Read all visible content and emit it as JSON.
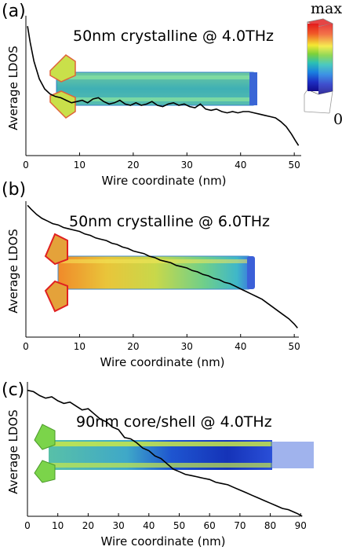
{
  "chart_data": [
    {
      "type": "line",
      "panel": "(a)",
      "title": "50nm crystalline @ 4.0THz",
      "xlabel": "Wire coordinate (nm)",
      "ylabel": "Average LDOS",
      "xticks": [
        0,
        10,
        20,
        30,
        40,
        50
      ],
      "xlim": [
        0,
        51
      ],
      "ylim": [
        0,
        1
      ],
      "grid": false,
      "series": [
        {
          "x": [
            0.3,
            0.8,
            1.5,
            2.5,
            3.5,
            4.5,
            5.5,
            6.5,
            7.5,
            8.5,
            9.5,
            10.5,
            11.5,
            12.5,
            13.5,
            14.5,
            15.5,
            16.5,
            17.5,
            18.5,
            19.5,
            20.5,
            21.5,
            22.5,
            23.5,
            24.5,
            25.5,
            26.5,
            27.5,
            28.5,
            29.5,
            30.5,
            31.5,
            32.5,
            33.5,
            34.5,
            35.5,
            36.5,
            37.5,
            38.5,
            39.5,
            40.5,
            41.5,
            42.5,
            43.5,
            44.5,
            45.5,
            46.5,
            47.5,
            48.5,
            49.5,
            50.2,
            50.8
          ],
          "y": [
            0.98,
            0.85,
            0.7,
            0.56,
            0.48,
            0.44,
            0.42,
            0.41,
            0.39,
            0.37,
            0.38,
            0.39,
            0.37,
            0.4,
            0.41,
            0.38,
            0.36,
            0.37,
            0.39,
            0.36,
            0.35,
            0.37,
            0.35,
            0.36,
            0.38,
            0.35,
            0.34,
            0.36,
            0.37,
            0.35,
            0.36,
            0.34,
            0.33,
            0.36,
            0.32,
            0.31,
            0.32,
            0.3,
            0.29,
            0.3,
            0.29,
            0.3,
            0.3,
            0.29,
            0.28,
            0.27,
            0.26,
            0.25,
            0.22,
            0.18,
            0.12,
            0.07,
            0.03
          ]
        }
      ]
    },
    {
      "type": "line",
      "panel": "(b)",
      "title": "50nm crystalline @ 6.0THz",
      "xlabel": "Wire coordinate (nm)",
      "ylabel": "Average LDOS",
      "xticks": [
        0,
        10,
        20,
        30,
        40,
        50
      ],
      "xlim": [
        0,
        51
      ],
      "ylim": [
        0,
        1
      ],
      "grid": false,
      "series": [
        {
          "x": [
            0.3,
            1,
            2,
            3,
            4,
            5,
            6,
            7,
            8,
            9,
            10,
            11,
            12,
            13,
            14,
            15,
            16,
            17,
            18,
            19,
            20,
            21,
            22,
            23,
            24,
            25,
            26,
            27,
            28,
            29,
            30,
            31,
            32,
            33,
            34,
            35,
            36,
            37,
            38,
            39,
            40,
            41,
            42,
            43,
            44,
            45,
            46,
            47,
            48,
            49,
            50,
            50.6
          ],
          "y": [
            0.98,
            0.95,
            0.91,
            0.88,
            0.86,
            0.84,
            0.83,
            0.81,
            0.8,
            0.79,
            0.78,
            0.76,
            0.75,
            0.73,
            0.72,
            0.71,
            0.69,
            0.68,
            0.66,
            0.65,
            0.63,
            0.62,
            0.61,
            0.59,
            0.58,
            0.56,
            0.55,
            0.54,
            0.52,
            0.51,
            0.5,
            0.48,
            0.47,
            0.45,
            0.44,
            0.42,
            0.41,
            0.39,
            0.38,
            0.36,
            0.34,
            0.32,
            0.3,
            0.28,
            0.26,
            0.23,
            0.2,
            0.17,
            0.14,
            0.11,
            0.07,
            0.04
          ]
        }
      ]
    },
    {
      "type": "line",
      "panel": "(c)",
      "title": "90nm core/shell @ 4.0THz",
      "xlabel": "Wire coordinate (nm)",
      "ylabel": "Average LDOS",
      "xticks": [
        0,
        10,
        20,
        30,
        40,
        50,
        60,
        70,
        80,
        90
      ],
      "xlim": [
        0,
        92
      ],
      "ylim": [
        0,
        1
      ],
      "grid": false,
      "series": [
        {
          "x": [
            0,
            2,
            4,
            6,
            8,
            10,
            12,
            14,
            16,
            18,
            20,
            22,
            24,
            26,
            28,
            30,
            32,
            34,
            36,
            38,
            40,
            42,
            44,
            46,
            48,
            50,
            52,
            54,
            56,
            58,
            60,
            62,
            64,
            66,
            68,
            70,
            72,
            74,
            76,
            78,
            80,
            82,
            84,
            86,
            88,
            89,
            90.5
          ],
          "y": [
            0.96,
            0.95,
            0.92,
            0.9,
            0.91,
            0.88,
            0.86,
            0.87,
            0.84,
            0.81,
            0.82,
            0.78,
            0.74,
            0.72,
            0.68,
            0.66,
            0.6,
            0.59,
            0.56,
            0.52,
            0.5,
            0.46,
            0.44,
            0.4,
            0.36,
            0.34,
            0.32,
            0.31,
            0.3,
            0.29,
            0.28,
            0.26,
            0.25,
            0.24,
            0.22,
            0.2,
            0.18,
            0.16,
            0.14,
            0.12,
            0.1,
            0.08,
            0.06,
            0.05,
            0.03,
            0.02,
            0.0
          ]
        }
      ]
    }
  ],
  "colorbar": {
    "max_label": "max",
    "min_label": "0"
  }
}
